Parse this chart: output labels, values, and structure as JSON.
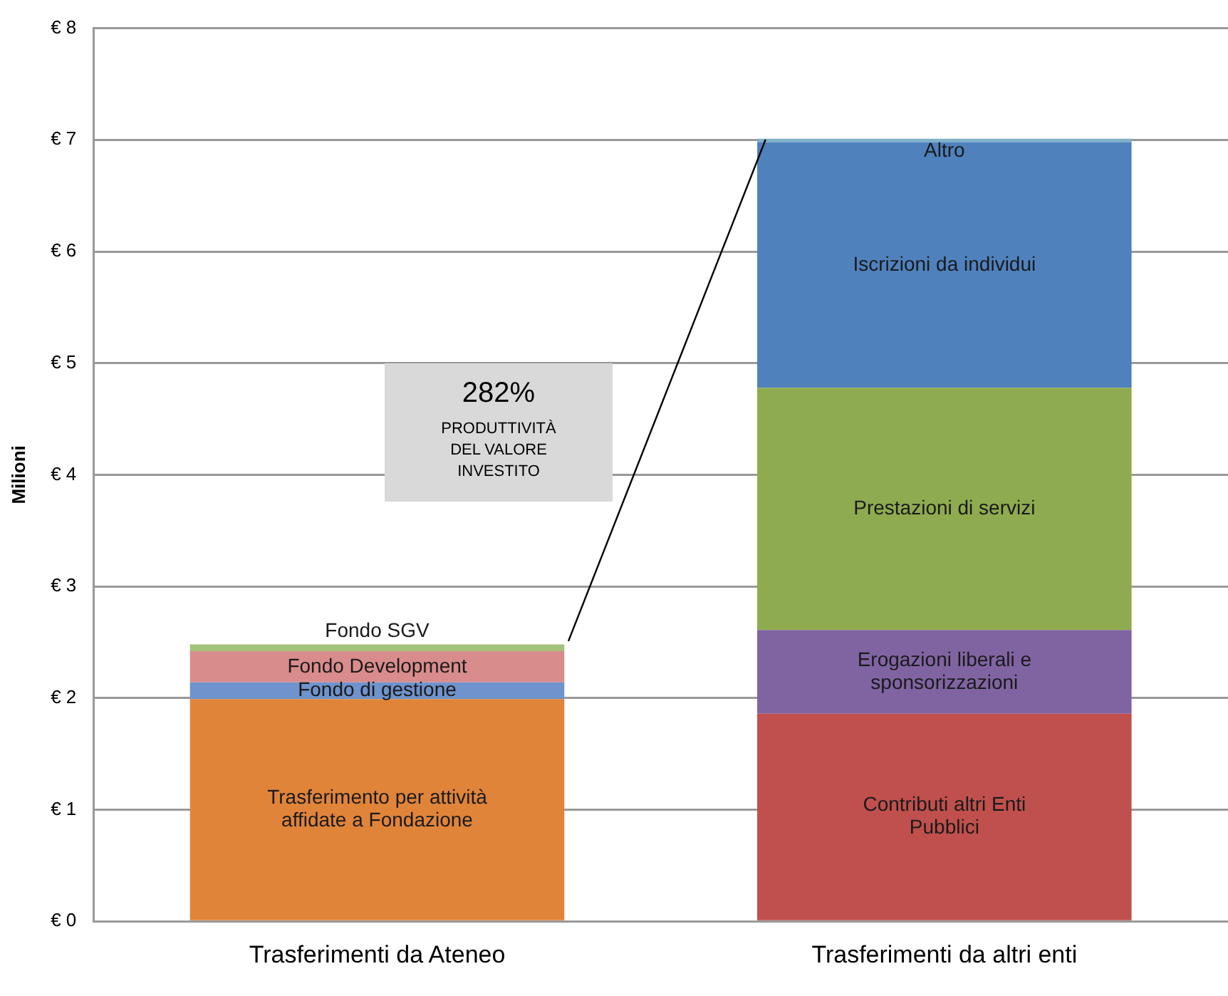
{
  "chart_data": {
    "type": "bar",
    "stacked": true,
    "categories": [
      "Trasferimenti da Ateneo",
      "Trasferimenti da altri enti"
    ],
    "ylabel": "Milioni",
    "ylim": [
      0,
      8
    ],
    "yticks": [
      {
        "value": 0,
        "label": "€ 0"
      },
      {
        "value": 1,
        "label": "€ 1"
      },
      {
        "value": 2,
        "label": "€ 2"
      },
      {
        "value": 3,
        "label": "€ 3"
      },
      {
        "value": 4,
        "label": "€ 4"
      },
      {
        "value": 5,
        "label": "€ 5"
      },
      {
        "value": 6,
        "label": "€ 6"
      },
      {
        "value": 7,
        "label": "€ 7"
      },
      {
        "value": 8,
        "label": "€ 8"
      }
    ],
    "grid": "y",
    "legend": false,
    "series": [
      {
        "name": "Trasferimento per attività affidate a Fondazione",
        "color": "#e0843a",
        "values": [
          1.99,
          null
        ]
      },
      {
        "name": "Fondo di gestione",
        "color": "#6f93cc",
        "values": [
          0.15,
          null
        ]
      },
      {
        "name": "Fondo Development",
        "color": "#d98c8c",
        "values": [
          0.28,
          null
        ]
      },
      {
        "name": "Fondo SGV",
        "color": "#a3c27a",
        "values": [
          0.06,
          null
        ]
      },
      {
        "name": "Contributi altri Enti Pubblici",
        "color": "#c0504d",
        "values": [
          null,
          1.86
        ]
      },
      {
        "name": "Erogazioni liberali e sponsorizzazioni",
        "color": "#8064a2",
        "values": [
          null,
          0.75
        ]
      },
      {
        "name": "Prestazioni di servizi",
        "color": "#8fab4f",
        "values": [
          null,
          2.17
        ]
      },
      {
        "name": "Iscrizioni da individui",
        "color": "#4f81bd",
        "values": [
          null,
          2.2
        ]
      },
      {
        "name": "Altro",
        "color": "#7fb0c8",
        "values": [
          null,
          0.03
        ]
      }
    ],
    "annotations": [
      "282%",
      "PRODUTTIVITÀ DEL VALORE INVESTITO"
    ]
  }
}
